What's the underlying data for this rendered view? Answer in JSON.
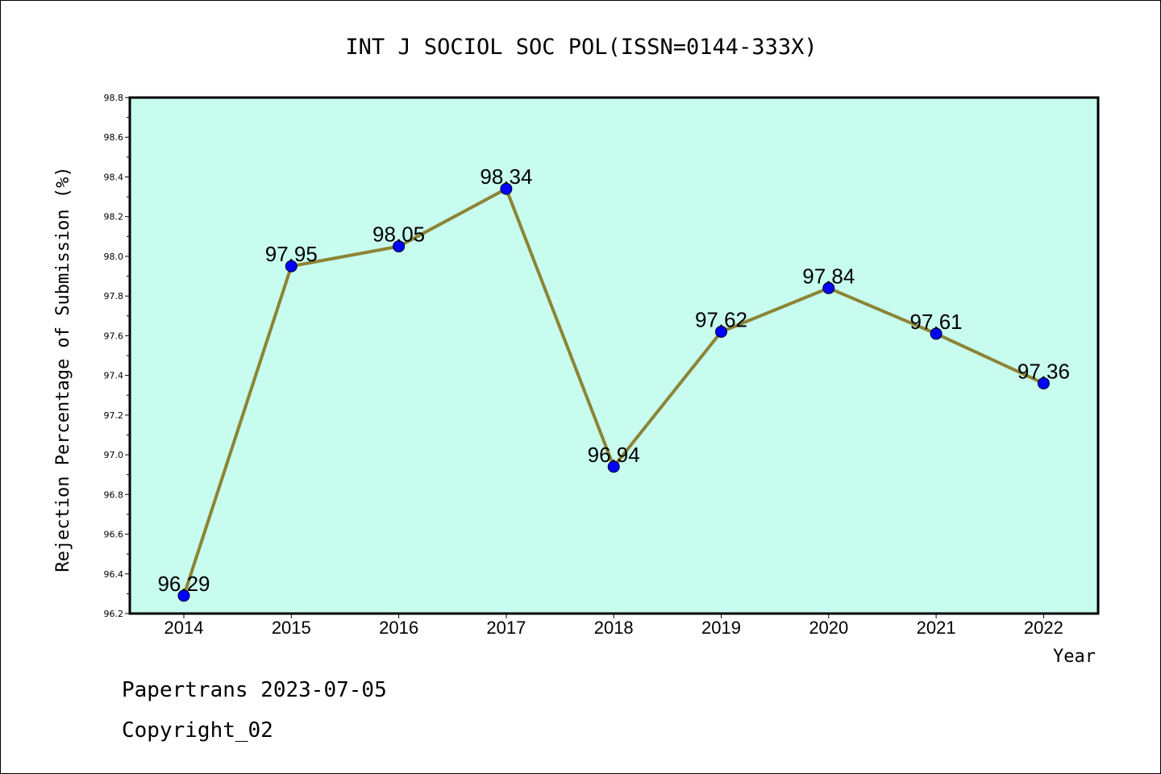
{
  "chart_data": {
    "type": "line",
    "title": "INT J SOCIOL SOC POL(ISSN=0144-333X)",
    "xlabel": "Year",
    "ylabel": "Rejection Percentage of Submission (%)",
    "categories": [
      "2014",
      "2015",
      "2016",
      "2017",
      "2018",
      "2019",
      "2020",
      "2021",
      "2022"
    ],
    "series": [
      {
        "values": [
          96.29,
          97.95,
          98.05,
          98.34,
          96.94,
          97.62,
          97.84,
          97.61,
          97.36
        ]
      }
    ],
    "data_labels": [
      "96.29",
      "97.95",
      "98.05",
      "98.34",
      "96.94",
      "97.62",
      "97.84",
      "97.61",
      "97.36"
    ],
    "ylim": [
      96.2,
      98.8
    ],
    "yticks": [
      "96.2",
      "96.4",
      "96.6",
      "96.8",
      "97.0",
      "97.2",
      "97.4",
      "97.6",
      "97.8",
      "98.0",
      "98.2",
      "98.4",
      "98.6",
      "98.8"
    ],
    "grid": false,
    "colors": {
      "plot_background": "#c8fcee",
      "line": "#8c8435",
      "marker": "#0000ff"
    }
  },
  "footer": {
    "line1": "Papertrans 2023-07-05",
    "line2": "Copyright_02"
  }
}
